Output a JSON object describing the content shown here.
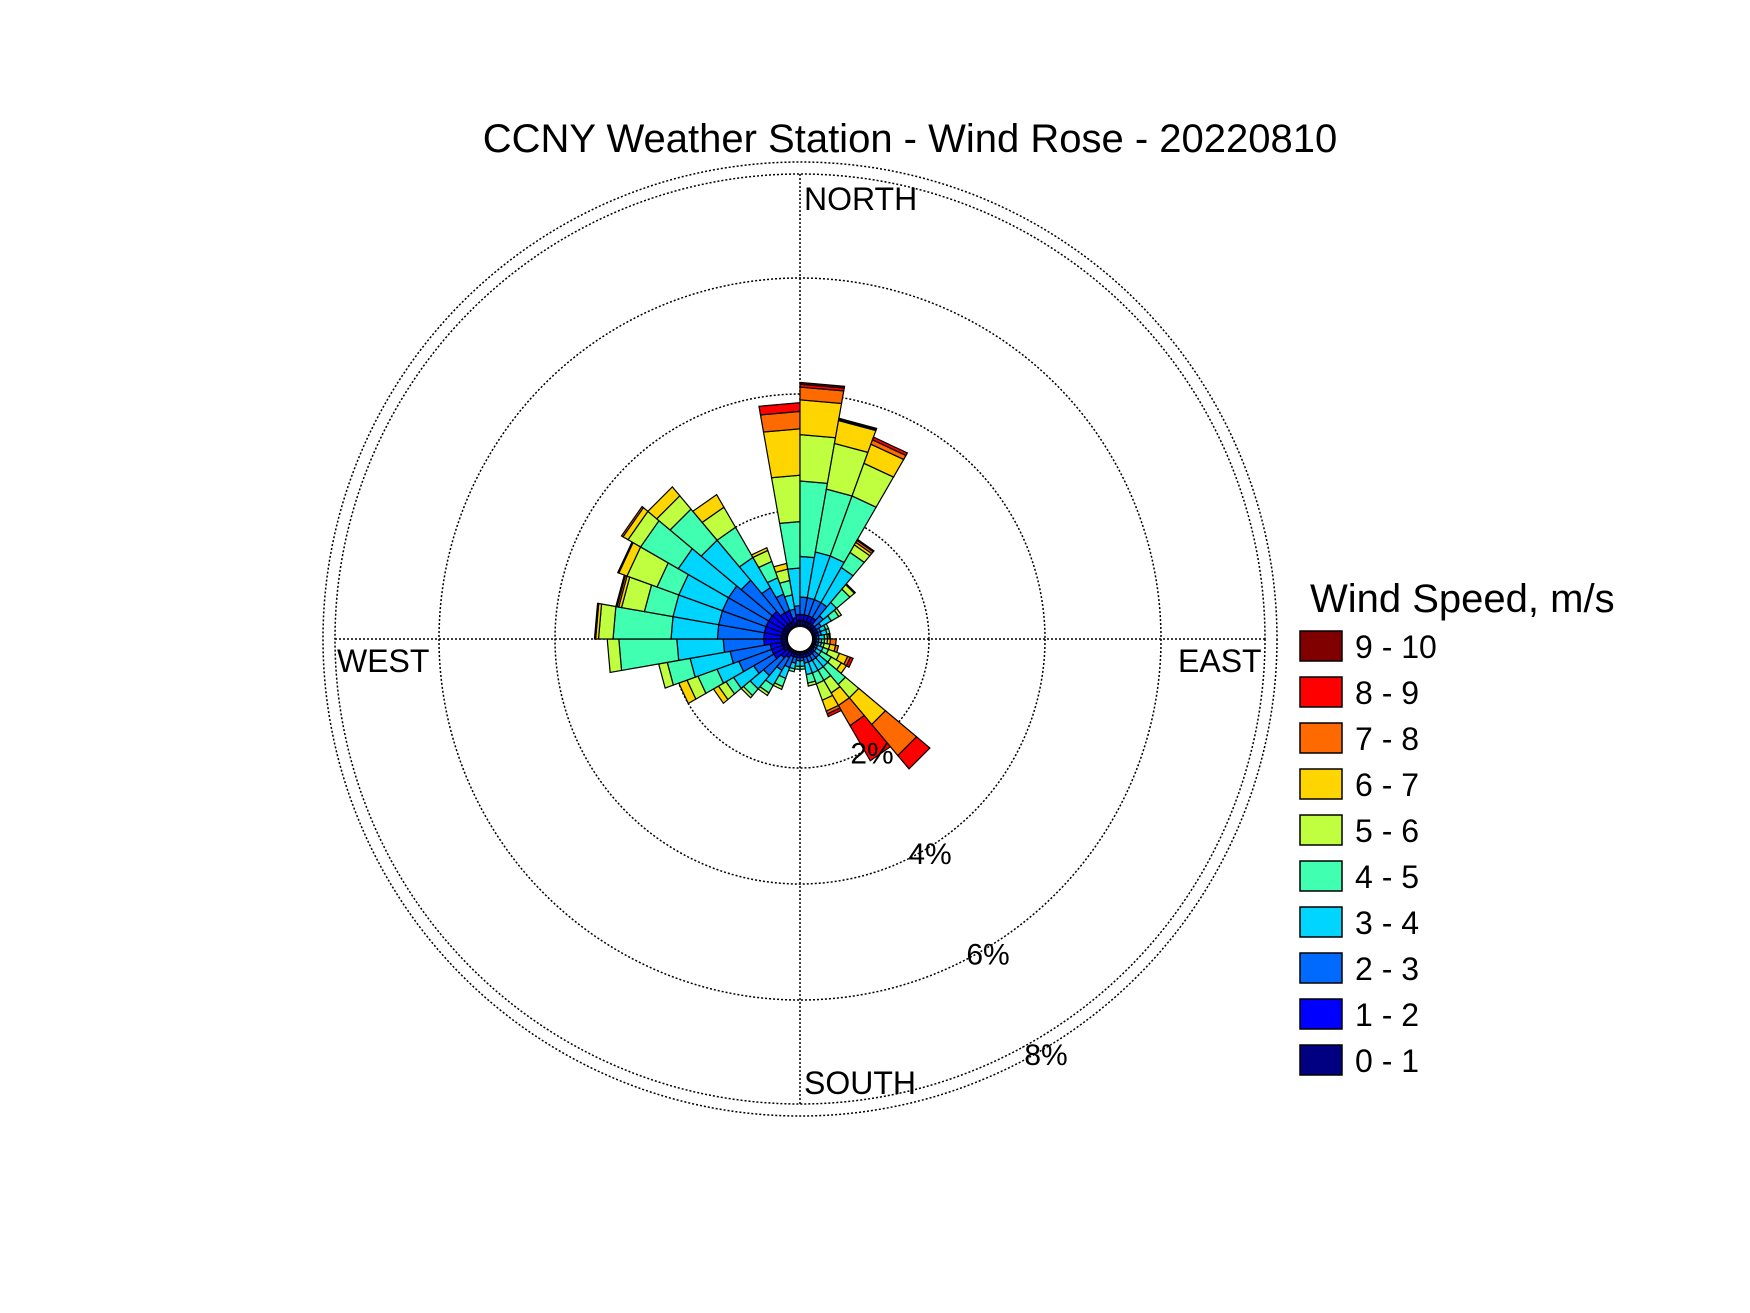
{
  "chart_data": {
    "type": "wind-rose",
    "title": "CCNY Weather Station - Wind Rose - 20220810",
    "compass": {
      "north": "NORTH",
      "south": "SOUTH",
      "east": "EAST",
      "west": "WEST"
    },
    "radial_ticks": [
      {
        "value": 2,
        "label": "2%"
      },
      {
        "value": 4,
        "label": "4%"
      },
      {
        "value": 6,
        "label": "6%"
      },
      {
        "value": 8,
        "label": "8%"
      }
    ],
    "radial_max": 8,
    "grid": true,
    "legend": {
      "title": "Wind Speed, m/s",
      "placement": "right",
      "bins": [
        {
          "label": "9 - 10",
          "color": "#800000"
        },
        {
          "label": "8 - 9",
          "color": "#ff0000"
        },
        {
          "label": "7 - 8",
          "color": "#ff6a00"
        },
        {
          "label": "6 - 7",
          "color": "#ffd500"
        },
        {
          "label": "5 - 6",
          "color": "#bfff40"
        },
        {
          "label": "4 - 5",
          "color": "#40ffb0"
        },
        {
          "label": "3 - 4",
          "color": "#00d5ff"
        },
        {
          "label": "2 - 3",
          "color": "#006aff"
        },
        {
          "label": "1 - 2",
          "color": "#0000ff"
        },
        {
          "label": "0 - 1",
          "color": "#000080"
        }
      ]
    },
    "direction_unit": "degrees clockwise from north",
    "speed_bins": [
      "0 - 1",
      "1 - 2",
      "2 - 3",
      "3 - 4",
      "4 - 5",
      "5 - 6",
      "6 - 7",
      "7 - 8",
      "8 - 9",
      "9 - 10"
    ],
    "sectors": [
      {
        "dir": 355,
        "cum": [
          0.1,
          0.2,
          0.35,
          1.0,
          1.8,
          2.6,
          3.4,
          3.7,
          3.85,
          3.85
        ]
      },
      {
        "dir": 5,
        "cum": [
          0.1,
          0.2,
          0.5,
          1.2,
          2.5,
          3.3,
          3.9,
          4.12,
          4.17,
          4.2
        ]
      },
      {
        "dir": 15,
        "cum": [
          0.1,
          0.2,
          0.5,
          1.3,
          2.4,
          3.2,
          3.6,
          3.62,
          3.64,
          3.64
        ]
      },
      {
        "dir": 25,
        "cum": [
          0.1,
          0.2,
          0.5,
          1.3,
          2.4,
          3.0,
          3.35,
          3.43,
          3.48,
          3.48
        ]
      },
      {
        "dir": 35,
        "cum": [
          0.1,
          0.2,
          0.5,
          1.2,
          1.5,
          1.65,
          1.7,
          1.74,
          1.76,
          1.76
        ]
      },
      {
        "dir": 45,
        "cum": [
          0.05,
          0.1,
          0.3,
          0.6,
          0.9,
          1.0,
          1.02,
          1.02,
          1.02,
          1.02
        ]
      },
      {
        "dir": 55,
        "cum": [
          0.05,
          0.1,
          0.2,
          0.4,
          0.55,
          0.6,
          0.6,
          0.6,
          0.6,
          0.6
        ]
      },
      {
        "dir": 65,
        "cum": [
          0.05,
          0.1,
          0.15,
          0.25,
          0.3,
          0.3,
          0.3,
          0.3,
          0.3,
          0.3
        ]
      },
      {
        "dir": 75,
        "cum": [
          0.05,
          0.1,
          0.15,
          0.25,
          0.3,
          0.3,
          0.3,
          0.3,
          0.3,
          0.3
        ]
      },
      {
        "dir": 85,
        "cum": [
          0.03,
          0.06,
          0.1,
          0.2,
          0.25,
          0.28,
          0.3,
          0.3,
          0.3,
          0.3
        ]
      },
      {
        "dir": 95,
        "cum": [
          0.03,
          0.06,
          0.1,
          0.15,
          0.2,
          0.25,
          0.3,
          0.4,
          0.4,
          0.4
        ]
      },
      {
        "dir": 105,
        "cum": [
          0.03,
          0.06,
          0.1,
          0.15,
          0.2,
          0.3,
          0.4,
          0.45,
          0.45,
          0.45
        ]
      },
      {
        "dir": 115,
        "cum": [
          0.03,
          0.06,
          0.1,
          0.2,
          0.3,
          0.5,
          0.65,
          0.7,
          0.75,
          0.75
        ]
      },
      {
        "dir": 125,
        "cum": [
          0.03,
          0.06,
          0.1,
          0.2,
          0.4,
          0.6,
          0.7,
          0.7,
          0.7,
          0.7
        ]
      },
      {
        "dir": 135,
        "cum": [
          0.05,
          0.1,
          0.2,
          0.4,
          0.8,
          1.1,
          1.7,
          2.4,
          2.7,
          2.7
        ]
      },
      {
        "dir": 145,
        "cum": [
          0.05,
          0.1,
          0.2,
          0.4,
          0.6,
          0.85,
          1.1,
          1.5,
          2.2,
          2.2
        ]
      },
      {
        "dir": 155,
        "cum": [
          0.05,
          0.1,
          0.2,
          0.4,
          0.6,
          0.9,
          1.1,
          1.15,
          1.2,
          1.2
        ]
      },
      {
        "dir": 165,
        "cum": [
          0.05,
          0.1,
          0.2,
          0.4,
          0.55,
          0.6,
          0.6,
          0.6,
          0.6,
          0.6
        ]
      },
      {
        "dir": 175,
        "cum": [
          0.05,
          0.1,
          0.15,
          0.25,
          0.3,
          0.3,
          0.3,
          0.3,
          0.3,
          0.3
        ]
      },
      {
        "dir": 185,
        "cum": [
          0.05,
          0.1,
          0.15,
          0.25,
          0.3,
          0.3,
          0.3,
          0.3,
          0.3,
          0.3
        ]
      },
      {
        "dir": 195,
        "cum": [
          0.05,
          0.1,
          0.2,
          0.3,
          0.35,
          0.35,
          0.35,
          0.35,
          0.35,
          0.35
        ]
      },
      {
        "dir": 205,
        "cum": [
          0.05,
          0.1,
          0.3,
          0.5,
          0.65,
          0.7,
          0.7,
          0.7,
          0.7,
          0.7
        ]
      },
      {
        "dir": 215,
        "cum": [
          0.05,
          0.15,
          0.4,
          0.7,
          0.85,
          0.9,
          0.9,
          0.9,
          0.9,
          0.9
        ]
      },
      {
        "dir": 225,
        "cum": [
          0.05,
          0.2,
          0.6,
          0.9,
          1.05,
          1.1,
          1.1,
          1.1,
          1.1,
          1.1
        ]
      },
      {
        "dir": 235,
        "cum": [
          0.1,
          0.3,
          0.7,
          1.1,
          1.25,
          1.4,
          1.5,
          1.5,
          1.5,
          1.5
        ]
      },
      {
        "dir": 245,
        "cum": [
          0.1,
          0.3,
          0.9,
          1.3,
          1.65,
          1.85,
          2.0,
          2.0,
          2.0,
          2.0
        ]
      },
      {
        "dir": 255,
        "cum": [
          0.1,
          0.3,
          1.0,
          1.7,
          2.1,
          2.25,
          2.25,
          2.25,
          2.25,
          2.25
        ]
      },
      {
        "dir": 265,
        "cum": [
          0.1,
          0.4,
          1.1,
          1.9,
          2.9,
          3.1,
          3.1,
          3.1,
          3.1,
          3.1
        ]
      },
      {
        "dir": 275,
        "cum": [
          0.1,
          0.4,
          1.2,
          2.0,
          3.0,
          3.25,
          3.3,
          3.32,
          3.32,
          3.32
        ]
      },
      {
        "dir": 285,
        "cum": [
          0.1,
          0.4,
          1.2,
          2.0,
          2.5,
          2.9,
          2.95,
          2.98,
          3.0,
          3.0
        ]
      },
      {
        "dir": 295,
        "cum": [
          0.1,
          0.4,
          1.2,
          2.0,
          2.4,
          2.95,
          3.1,
          3.12,
          3.12,
          3.12
        ]
      },
      {
        "dir": 305,
        "cum": [
          0.1,
          0.4,
          1.2,
          2.2,
          2.95,
          3.2,
          3.3,
          3.33,
          3.33,
          3.33
        ]
      },
      {
        "dir": 315,
        "cum": [
          0.1,
          0.4,
          1.1,
          2.0,
          2.7,
          3.0,
          3.2,
          3.2,
          3.2,
          3.2
        ]
      },
      {
        "dir": 325,
        "cum": [
          0.1,
          0.3,
          0.8,
          1.4,
          2.0,
          2.4,
          2.65,
          2.65,
          2.65,
          2.65
        ]
      },
      {
        "dir": 335,
        "cum": [
          0.1,
          0.3,
          0.6,
          0.9,
          1.2,
          1.4,
          1.45,
          1.45,
          1.45,
          1.45
        ]
      },
      {
        "dir": 345,
        "cum": [
          0.05,
          0.15,
          0.3,
          0.55,
          0.8,
          1.0,
          1.1,
          1.1,
          1.1,
          1.1
        ]
      }
    ]
  }
}
